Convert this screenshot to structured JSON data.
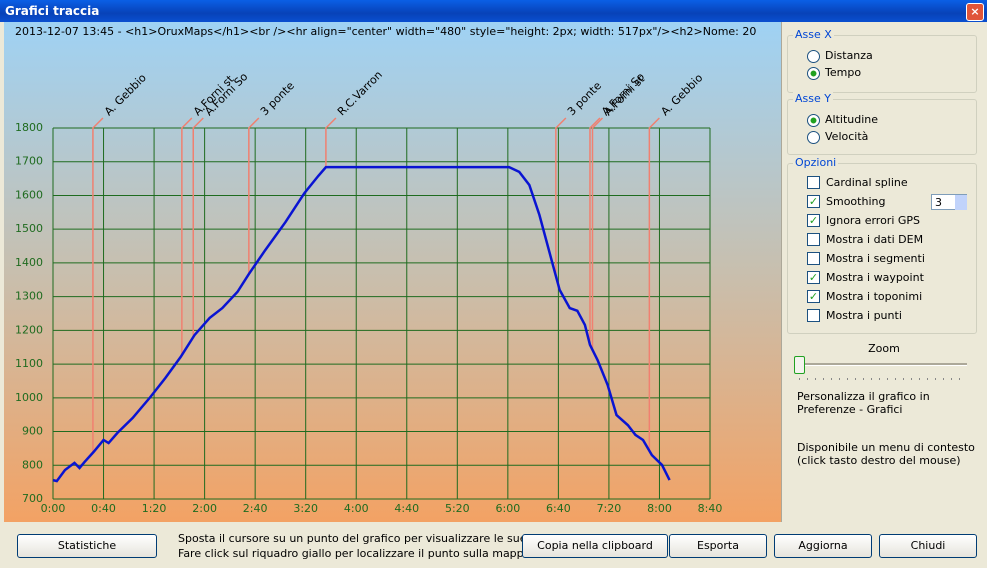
{
  "window": {
    "title": "Grafici traccia"
  },
  "chart_data": {
    "type": "line",
    "title": "2013-12-07 13:45 - <h1>OruxMaps</h1><br /><hr align=\"center\" width=\"480\" style=\"height: 2px; width: 517px\"/><h2>Nome: 20",
    "x": [
      0,
      3,
      9.5,
      17,
      21,
      25,
      32,
      40,
      44,
      51,
      63,
      77,
      89,
      101,
      112,
      124,
      134,
      146,
      155,
      168,
      184,
      199,
      210,
      216,
      361,
      369,
      377,
      385,
      395,
      401,
      409,
      415,
      421,
      425,
      431,
      439,
      446,
      455,
      461,
      467,
      474,
      482,
      488
    ],
    "series": [
      {
        "color": "#0a14d2",
        "values": [
          756,
          753,
          786,
          807,
          792,
          810,
          839,
          875,
          866,
          896,
          940,
          1002,
          1059,
          1121,
          1186,
          1237,
          1266,
          1314,
          1367,
          1438,
          1521,
          1607,
          1658,
          1684,
          1684,
          1670,
          1631,
          1542,
          1403,
          1320,
          1266,
          1258,
          1216,
          1157,
          1112,
          1038,
          949,
          919,
          890,
          875,
          830,
          801,
          756
        ]
      }
    ],
    "xlim": [
      0,
      520
    ],
    "ylim": [
      700,
      1800
    ],
    "xticks": [
      {
        "value": 0,
        "label": "0:00"
      },
      {
        "value": 40,
        "label": "0:40"
      },
      {
        "value": 80,
        "label": "1:20"
      },
      {
        "value": 120,
        "label": "2:00"
      },
      {
        "value": 160,
        "label": "2:40"
      },
      {
        "value": 200,
        "label": "3:20"
      },
      {
        "value": 240,
        "label": "4:00"
      },
      {
        "value": 280,
        "label": "4:40"
      },
      {
        "value": 320,
        "label": "5:20"
      },
      {
        "value": 360,
        "label": "6:00"
      },
      {
        "value": 400,
        "label": "6:40"
      },
      {
        "value": 440,
        "label": "7:20"
      },
      {
        "value": 480,
        "label": "8:00"
      },
      {
        "value": 520,
        "label": "8:40"
      }
    ],
    "yticks": [
      700,
      800,
      900,
      1000,
      1100,
      1200,
      1300,
      1400,
      1500,
      1600,
      1700,
      1800
    ],
    "grid": true,
    "grid_color": "#1f6b1f",
    "annotation_color": "#f08070",
    "annotations": [
      {
        "text": "A. Gebbio",
        "x": 31.6
      },
      {
        "text": "A.Forni st",
        "x": 102
      },
      {
        "text": "A.Forni So",
        "x": 111
      },
      {
        "text": "3 ponte",
        "x": 155
      },
      {
        "text": "R.C.Varron",
        "x": 216
      },
      {
        "text": "3 ponte",
        "x": 398
      },
      {
        "text": "A.Forni So",
        "x": 425
      },
      {
        "text": "A.Forni st",
        "x": 427
      },
      {
        "text": "A. Gebbio",
        "x": 472
      }
    ]
  },
  "panel": {
    "axis_x": {
      "title": "Asse X",
      "options": [
        {
          "label": "Distanza",
          "selected": false
        },
        {
          "label": "Tempo",
          "selected": true
        }
      ]
    },
    "axis_y": {
      "title": "Asse Y",
      "options": [
        {
          "label": "Altitudine",
          "selected": true
        },
        {
          "label": "Velocità",
          "selected": false
        }
      ]
    },
    "options": {
      "title": "Opzioni",
      "items": [
        {
          "label": "Cardinal spline",
          "checked": false
        },
        {
          "label": "Smoothing",
          "checked": true
        },
        {
          "label": "Ignora errori GPS",
          "checked": true
        },
        {
          "label": "Mostra i dati DEM",
          "checked": false
        },
        {
          "label": "Mostra i segmenti",
          "checked": false
        },
        {
          "label": "Mostra i waypoint",
          "checked": true
        },
        {
          "label": "Mostra i toponimi",
          "checked": true
        },
        {
          "label": "Mostra i punti",
          "checked": false
        }
      ],
      "smoothing": 3
    },
    "zoom": "Zoom",
    "notes": [
      "Personalizza il grafico in Preferenze - Grafici",
      "Disponibile un menu di contesto (click tasto destro del mouse)"
    ]
  },
  "hint": [
    "Sposta il cursore su un punto del grafico per visualizzare le sue",
    "Fare click sul riquadro giallo per localizzare il punto sulla mappa"
  ],
  "buttons": [
    "Statistiche",
    "Copia nella clipboard",
    "Esporta",
    "Aggiorna",
    "Chiudi"
  ]
}
